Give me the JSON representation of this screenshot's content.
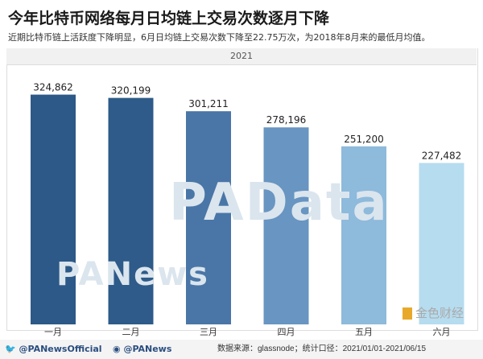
{
  "header": {
    "title": "今年比特币网络每月日均链上交易次数逐月下降",
    "subtitle": "近期比特币链上活跃度下降明显，6月日均链上交易次数下降至22.75万次，为2018年8月来的最低月均值。"
  },
  "watermarks": {
    "top": "PANews",
    "middle": "PAData"
  },
  "footer": {
    "twitter": "@PANewsOfficial",
    "weibo": "@PANews",
    "source": "数据来源：glassnode；统计口径：2021/01/01-2021/06/15",
    "logo": "金色财经"
  },
  "chart_data": {
    "type": "bar",
    "title": "2021",
    "categories": [
      "一月",
      "二月",
      "三月",
      "四月",
      "五月",
      "六月"
    ],
    "values": [
      324862,
      320199,
      301211,
      278196,
      251200,
      227482
    ],
    "labels": [
      "324,862",
      "320,199",
      "301,211",
      "278,196",
      "251,200",
      "227,482"
    ],
    "colors": [
      "#2c5987",
      "#2e5b89",
      "#4976a7",
      "#6895c1",
      "#8ebadb",
      "#b6dcef"
    ],
    "xlabel": "",
    "ylabel": "",
    "ylim": [
      -22000,
      345000
    ],
    "grid": false
  }
}
